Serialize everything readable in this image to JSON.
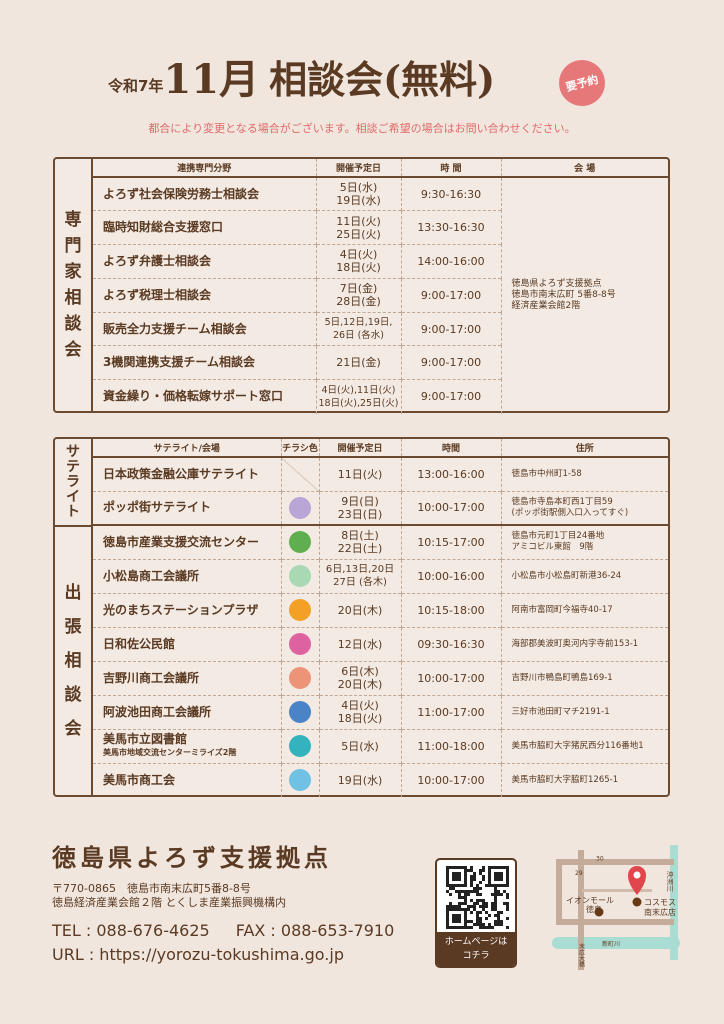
{
  "header": {
    "era": "令和7年",
    "month": "11月",
    "title": "相談会(無料)",
    "badge": "要予約",
    "notice": "都合により変更となる場合がございます。相談ご希望の場合はお問い合わせください。"
  },
  "experts": {
    "side_label": [
      "専",
      "門",
      "家",
      "相",
      "談",
      "会"
    ],
    "headers": [
      "連携専門分野",
      "開催予定日",
      "時 間",
      "会 場"
    ],
    "venue": [
      "徳島県よろず支援拠点",
      "徳島市南末広町 5番8-8号",
      "経済産業会館2階"
    ],
    "rows": [
      {
        "name": "よろず社会保険労務士相談会",
        "dates": [
          "5日(水)",
          "19日(水)"
        ],
        "time": "9:30-16:30"
      },
      {
        "name": "臨時知財総合支援窓口",
        "dates": [
          "11日(火)",
          "25日(火)"
        ],
        "time": "13:30-16:30"
      },
      {
        "name": "よろず弁護士相談会",
        "dates": [
          "4日(火)",
          "18日(火)"
        ],
        "time": "14:00-16:00"
      },
      {
        "name": "よろず税理士相談会",
        "dates": [
          "7日(金)",
          "28日(金)"
        ],
        "time": "9:00-17:00"
      },
      {
        "name": "販売全力支援チーム相談会",
        "dates": [
          "5日,12日,19日,",
          "26日 (各水)"
        ],
        "time": "9:00-17:00"
      },
      {
        "name": "3機関連携支援チーム相談会",
        "dates": [
          "21日(金)"
        ],
        "time": "9:00-17:00"
      },
      {
        "name": "資金繰り・価格転嫁サポート窓口",
        "dates": [
          "4日(火),11日(火)",
          "18日(火),25日(火)"
        ],
        "time": "9:00-17:00"
      }
    ]
  },
  "satellite": {
    "side_label_satellite": [
      "サ",
      "テ",
      "ラ",
      "イ",
      "ト"
    ],
    "side_label_outreach": [
      "出",
      "張",
      "相",
      "談",
      "会"
    ],
    "headers": [
      "サテライト/会場",
      "チラシ色",
      "開催予定日",
      "時間",
      "住所"
    ],
    "rows": [
      {
        "name": "日本政策金融公庫サテライト",
        "color": "",
        "dates": [
          "11日(火)"
        ],
        "time": "13:00-16:00",
        "address": [
          "徳島市中州町1-58"
        ]
      },
      {
        "name": "ポッポ街サテライト",
        "color": "#b9a6d6",
        "dates": [
          "9日(日)",
          "23日(日)"
        ],
        "time": "10:00-17:00",
        "address": [
          "徳島市寺島本町西1丁目59",
          "(ポッポ街駅側入口入ってすぐ)"
        ]
      },
      {
        "name": "徳島市産業支援交流センター",
        "color": "#5fae4f",
        "dates": [
          "8日(土)",
          "22日(土)"
        ],
        "time": "10:15-17:00",
        "address": [
          "徳島市元町1丁目24番地",
          "アミコビル東館　9階"
        ]
      },
      {
        "name": "小松島商工会議所",
        "color": "#a8d9b4",
        "dates": [
          "6日,13日,20日",
          "27日 (各木)"
        ],
        "time": "10:00-16:00",
        "address": [
          "小松島市小松島町新港36-24"
        ]
      },
      {
        "name": "光のまちステーションプラザ",
        "color": "#f3a026",
        "dates": [
          "20日(木)"
        ],
        "time": "10:15-18:00",
        "address": [
          "阿南市富岡町今福寺40-17"
        ]
      },
      {
        "name": "日和佐公民館",
        "color": "#df62a0",
        "dates": [
          "12日(水)"
        ],
        "time": "09:30-16:30",
        "address": [
          "海部郡美波町奥河内字寺前153-1"
        ]
      },
      {
        "name": "吉野川商工会議所",
        "color": "#ec9378",
        "dates": [
          "6日(木)",
          "20日(木)"
        ],
        "time": "10:00-17:00",
        "address": [
          "吉野川市鴨島町鴨島169-1"
        ]
      },
      {
        "name": "阿波池田商工会議所",
        "color": "#4a84c6",
        "dates": [
          "4日(火)",
          "18日(火)"
        ],
        "time": "11:00-17:00",
        "address": [
          "三好市池田町マチ2191-1"
        ]
      },
      {
        "name": "美馬市立図書館",
        "sub": "美馬市地域交流センターミライズ2階",
        "color": "#34b3bf",
        "dates": [
          "5日(水)"
        ],
        "time": "11:00-18:00",
        "address": [
          "美馬市脇町大字猪尻西分116番地1"
        ]
      },
      {
        "name": "美馬市商工会",
        "color": "#6fc2e4",
        "dates": [
          "19日(水)"
        ],
        "time": "10:00-17:00",
        "address": [
          "美馬市脇町大字脇町1265-1"
        ]
      }
    ]
  },
  "footer": {
    "org": "徳島県よろず支援拠点",
    "address": [
      "〒770-0865　徳島市南末広町5番8-8号",
      "徳島経済産業会館２階 とくしま産業振興機構内"
    ],
    "tel": "TEL : 088-676-4625",
    "fax": "FAX : 088-653-7910",
    "url": "URL : https://yorozu-tokushima.go.jp",
    "qr_label": [
      "ホームページは",
      "コチラ"
    ],
    "map": {
      "labels": [
        "イオンモール",
        "徳島",
        "コスモス",
        "南末広店",
        "沖洲川",
        "新町川",
        "末広大橋",
        "30",
        "29"
      ],
      "pin_color": "#e0474c",
      "river_color": "#a9dcd3"
    }
  }
}
